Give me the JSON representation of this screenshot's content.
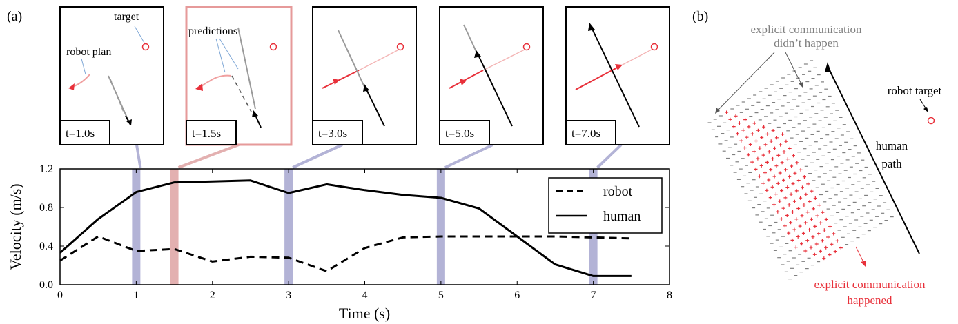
{
  "panel_labels": {
    "a": "(a)",
    "b": "(b)"
  },
  "snapshots": [
    {
      "time": 1.0,
      "label": "t=1.0s",
      "highlight": false,
      "annotations": [
        "target",
        "robot plan"
      ]
    },
    {
      "time": 1.5,
      "label": "t=1.5s",
      "highlight": true,
      "annotations": [
        "predictions"
      ]
    },
    {
      "time": 3.0,
      "label": "t=3.0s",
      "highlight": false,
      "annotations": []
    },
    {
      "time": 5.0,
      "label": "t=5.0s",
      "highlight": false,
      "annotations": []
    },
    {
      "time": 7.0,
      "label": "t=7.0s",
      "highlight": false,
      "annotations": []
    }
  ],
  "chart_data": {
    "type": "line",
    "xlabel": "Time (s)",
    "ylabel": "Velocity (m/s)",
    "xlim": [
      0,
      8
    ],
    "ylim": [
      0,
      1.2
    ],
    "xticks": [
      0,
      1,
      2,
      3,
      4,
      5,
      6,
      7,
      8
    ],
    "yticks": [
      0.0,
      0.4,
      0.8,
      1.2
    ],
    "ytick_labels": [
      "0.0",
      "0.4",
      "0.8",
      "1.2"
    ],
    "legend_position": "top-right",
    "highlight_times": [
      1.0,
      1.5,
      3.0,
      5.0,
      7.0
    ],
    "highlight_colors": [
      "#b3b3d6",
      "#e3b0b0",
      "#b3b3d6",
      "#b3b3d6",
      "#b3b3d6"
    ],
    "series": [
      {
        "name": "robot",
        "style": "dashed",
        "x": [
          0,
          0.5,
          1.0,
          1.5,
          2.0,
          2.5,
          3.0,
          3.5,
          4.0,
          4.5,
          5.0,
          5.5,
          6.0,
          6.5,
          7.0,
          7.5
        ],
        "y": [
          0.25,
          0.5,
          0.35,
          0.37,
          0.24,
          0.29,
          0.28,
          0.14,
          0.38,
          0.49,
          0.5,
          0.5,
          0.5,
          0.5,
          0.49,
          0.48
        ]
      },
      {
        "name": "human",
        "style": "solid",
        "x": [
          0,
          0.5,
          1.0,
          1.5,
          2.0,
          2.5,
          3.0,
          3.5,
          4.0,
          4.5,
          5.0,
          5.5,
          6.0,
          6.5,
          7.0,
          7.5
        ],
        "y": [
          0.33,
          0.68,
          0.96,
          1.06,
          1.07,
          1.08,
          0.95,
          1.04,
          0.98,
          0.93,
          0.9,
          0.79,
          0.5,
          0.21,
          0.09,
          0.09
        ]
      }
    ]
  },
  "panel_b": {
    "gray_label_lines": [
      "explicit communication",
      "didn’t happen"
    ],
    "red_label_lines": [
      "explicit communication",
      "happened"
    ],
    "robot_target_label": "robot target",
    "human_path_label_lines": [
      "human",
      "path"
    ],
    "colors": {
      "gray": "#808080",
      "red": "#e8303a",
      "path": "#000000",
      "target": "#e8303a"
    }
  }
}
